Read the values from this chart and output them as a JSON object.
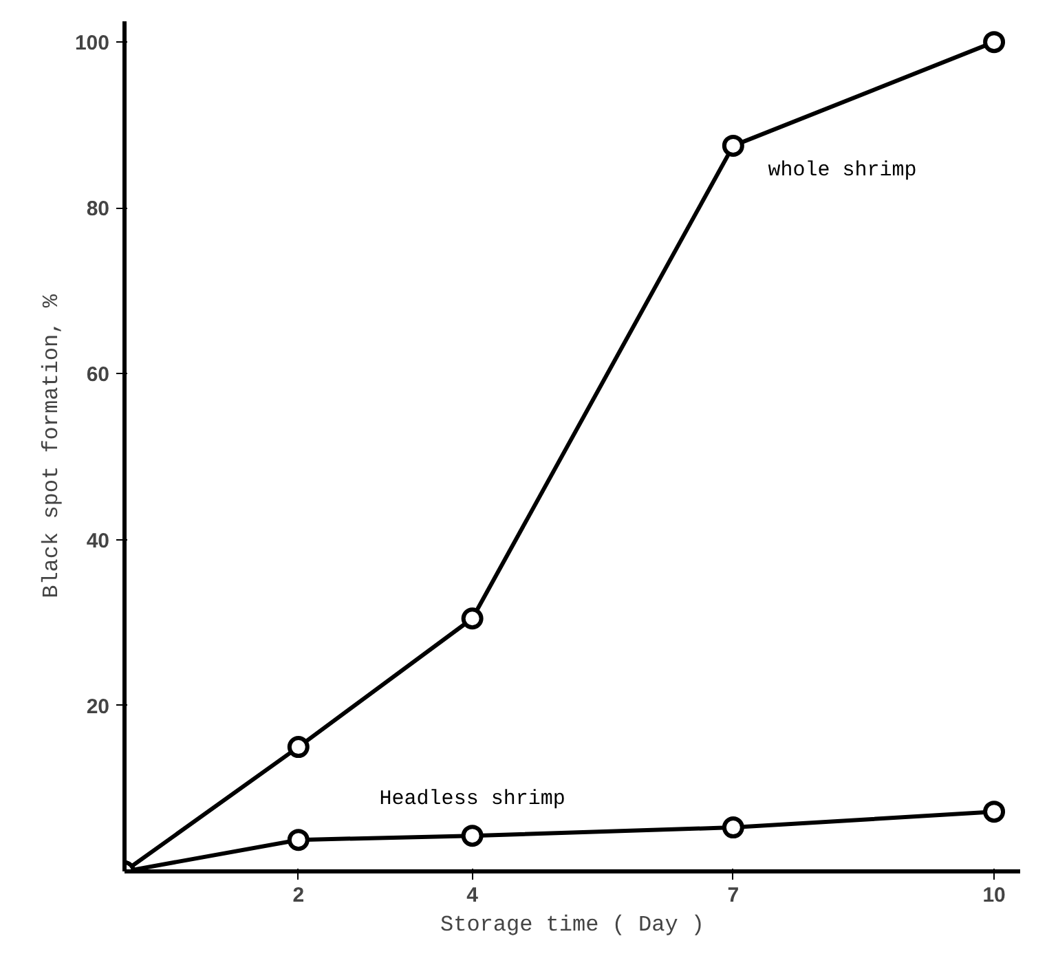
{
  "chart_data": {
    "type": "line",
    "xlabel": "Storage time ( Day )",
    "ylabel": "Black spot formation, %",
    "x": [
      0,
      2,
      4,
      7,
      10
    ],
    "series": [
      {
        "name": "whole shrimp",
        "color": "#000000",
        "values": [
          0,
          15,
          30.5,
          87.5,
          100
        ]
      },
      {
        "name": "Headless shrimp",
        "color": "#000000",
        "values": [
          0,
          3.8,
          4.3,
          5.3,
          7.2
        ]
      }
    ],
    "xlim": [
      0,
      10.3
    ],
    "xticks": [
      2,
      4,
      7,
      10
    ],
    "ylim": [
      0,
      102.5
    ],
    "yticks": [
      20,
      40,
      60,
      80,
      100
    ],
    "grid": false,
    "legend": false,
    "marker": "circle",
    "line_style": "solid"
  }
}
